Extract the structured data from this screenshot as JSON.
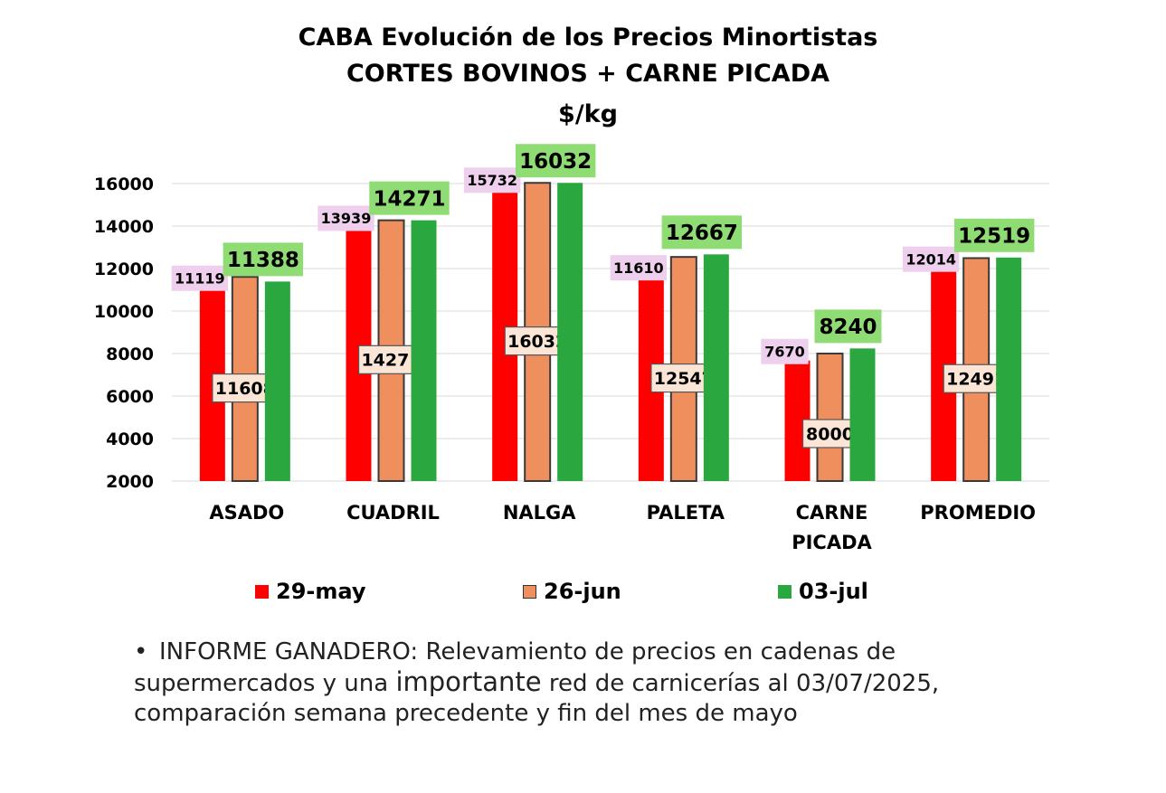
{
  "title": {
    "line1": "CABA Evolución de los Precios Minortistas",
    "line2": "CORTES BOVINOS + CARNE PICADA",
    "line3": "$/kg"
  },
  "chart_data": {
    "type": "bar",
    "categories": [
      "ASADO",
      "CUADRIL",
      "NALGA",
      "PALETA",
      "CARNE PICADA",
      "PROMEDIO"
    ],
    "series": [
      {
        "name": "29-may",
        "color": "#ff0000",
        "values": [
          11119,
          13939,
          15732,
          11610,
          7670,
          12014
        ],
        "label_bg": "#efcfee"
      },
      {
        "name": "26-jun",
        "color": "#f08f5e",
        "values": [
          11608,
          14271,
          16032,
          12547,
          8000,
          12491
        ],
        "label_bg": "#fbe5d6"
      },
      {
        "name": "03-jul",
        "color": "#2aa73e",
        "values": [
          11388,
          14271,
          16032,
          12667,
          8240,
          12519
        ],
        "label_bg": "#8fdc75"
      }
    ],
    "ylim": [
      2000,
      16000
    ],
    "yticks": [
      2000,
      4000,
      6000,
      8000,
      10000,
      12000,
      14000,
      16000
    ],
    "grid": true,
    "legend": "bottom"
  },
  "note": {
    "bullet": "•",
    "part1": "INFORME GANADERO: Relevamiento de precios en cadenas de supermercados y una ",
    "emph": "importante",
    "part2": " red de carnicerías al 03/07/2025, comparación semana precedente y fin del mes de mayo"
  }
}
